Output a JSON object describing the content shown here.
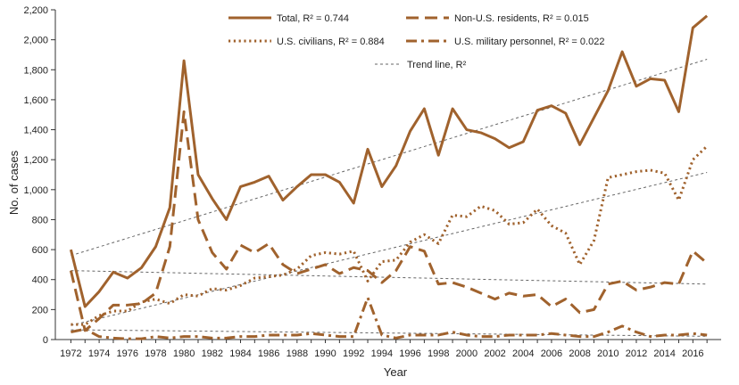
{
  "chart_data": {
    "type": "line",
    "xlabel": "Year",
    "ylabel": "No. of cases",
    "xlim": [
      1972,
      2017
    ],
    "ylim": [
      0,
      2200
    ],
    "x_ticks": [
      1972,
      1974,
      1976,
      1978,
      1980,
      1982,
      1984,
      1986,
      1988,
      1990,
      1992,
      1994,
      1996,
      1998,
      2000,
      2002,
      2004,
      2006,
      2008,
      2010,
      2012,
      2014,
      2016
    ],
    "y_ticks": [
      0,
      200,
      400,
      600,
      800,
      1000,
      1200,
      1400,
      1600,
      1800,
      2000,
      2200
    ],
    "y_tick_labels": [
      "0",
      "200",
      "400",
      "600",
      "800",
      "1,000",
      "1,200",
      "1,400",
      "1,600",
      "1,800",
      "2,000",
      "2,200"
    ],
    "grid": false,
    "legend_placement": "top",
    "x": [
      1972,
      1973,
      1974,
      1975,
      1976,
      1977,
      1978,
      1979,
      1980,
      1981,
      1982,
      1983,
      1984,
      1985,
      1986,
      1987,
      1988,
      1989,
      1990,
      1991,
      1992,
      1993,
      1994,
      1995,
      1996,
      1997,
      1998,
      1999,
      2000,
      2001,
      2002,
      2003,
      2004,
      2005,
      2006,
      2007,
      2008,
      2009,
      2010,
      2011,
      2012,
      2013,
      2014,
      2015,
      2016,
      2017
    ],
    "series": [
      {
        "name": "Total, R² = 0.744",
        "style": "solid",
        "color": "#a0622d",
        "values": [
          600,
          220,
          320,
          450,
          410,
          480,
          620,
          880,
          1860,
          1100,
          940,
          800,
          1020,
          1050,
          1090,
          930,
          1020,
          1100,
          1100,
          1050,
          910,
          1270,
          1020,
          1160,
          1390,
          1540,
          1230,
          1540,
          1400,
          1380,
          1340,
          1280,
          1320,
          1530,
          1560,
          1510,
          1300,
          1480,
          1660,
          1920,
          1690,
          1740,
          1730,
          1520,
          2080,
          2160
        ]
      },
      {
        "name": "Non-U.S. residents, R² = 0.015",
        "style": "longdash",
        "color": "#a0622d",
        "values": [
          460,
          60,
          140,
          230,
          230,
          240,
          310,
          620,
          1520,
          800,
          580,
          470,
          630,
          580,
          640,
          500,
          440,
          470,
          500,
          440,
          480,
          460,
          380,
          460,
          620,
          590,
          370,
          380,
          350,
          310,
          270,
          310,
          290,
          300,
          220,
          270,
          180,
          200,
          370,
          390,
          330,
          350,
          380,
          370,
          590,
          510
        ]
      },
      {
        "name": "U.S. civilians, R² = 0.884",
        "style": "dotted",
        "color": "#a0622d",
        "values": [
          100,
          100,
          160,
          190,
          190,
          250,
          270,
          240,
          300,
          290,
          340,
          330,
          360,
          410,
          420,
          430,
          470,
          560,
          580,
          570,
          590,
          390,
          520,
          530,
          650,
          700,
          640,
          830,
          820,
          890,
          860,
          770,
          780,
          870,
          760,
          710,
          500,
          660,
          1080,
          1100,
          1120,
          1130,
          1110,
          930,
          1200,
          1290
        ]
      },
      {
        "name": "U.S. military personnel, R² = 0.022",
        "style": "dashdot",
        "color": "#a0622d",
        "values": [
          50,
          70,
          20,
          10,
          5,
          5,
          20,
          10,
          20,
          20,
          10,
          10,
          20,
          20,
          30,
          30,
          30,
          40,
          30,
          20,
          20,
          280,
          30,
          10,
          30,
          30,
          30,
          50,
          30,
          20,
          20,
          30,
          30,
          30,
          40,
          30,
          20,
          20,
          50,
          90,
          50,
          20,
          30,
          30,
          40,
          30
        ]
      }
    ],
    "trend_lines": {
      "label": "Trend line, R²",
      "lines": [
        {
          "x": [
            1972,
            2017
          ],
          "y": [
            560,
            1870
          ]
        },
        {
          "x": [
            1972,
            2017
          ],
          "y": [
            95,
            1115
          ]
        },
        {
          "x": [
            1972,
            2017
          ],
          "y": [
            460,
            370
          ]
        },
        {
          "x": [
            1972,
            2017
          ],
          "y": [
            65,
            22
          ]
        }
      ]
    }
  }
}
